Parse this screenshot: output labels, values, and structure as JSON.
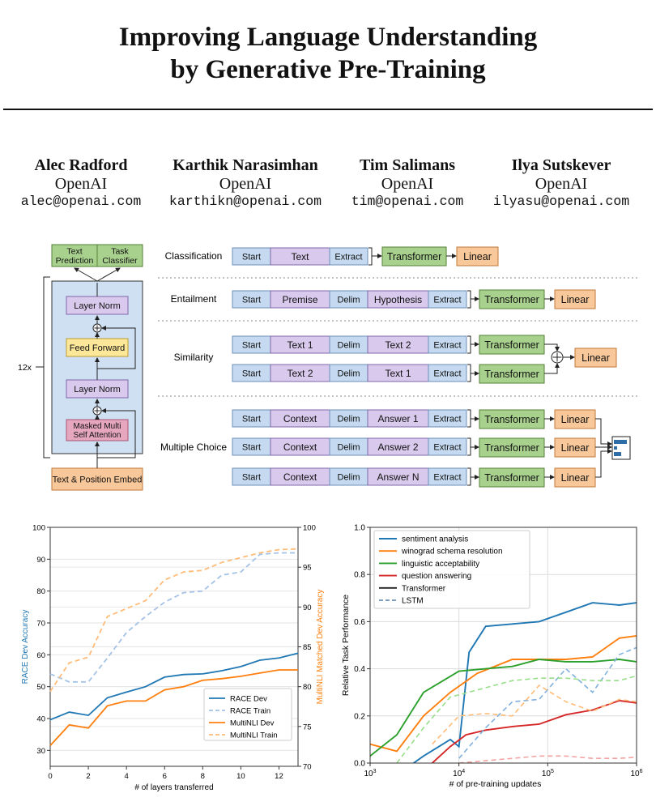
{
  "paper": {
    "title_line1": "Improving Language Understanding",
    "title_line2": "by Generative Pre-Training",
    "authors": [
      {
        "name": "Alec Radford",
        "affiliation": "OpenAI",
        "email": "alec@openai.com"
      },
      {
        "name": "Karthik Narasimhan",
        "affiliation": "OpenAI",
        "email": "karthikn@openai.com"
      },
      {
        "name": "Tim Salimans",
        "affiliation": "OpenAI",
        "email": "tim@openai.com"
      },
      {
        "name": "Ilya Sutskever",
        "affiliation": "OpenAI",
        "email": "ilyasu@openai.com"
      }
    ]
  },
  "figure": {
    "arch": {
      "text_prediction": [
        "Text",
        "Prediction"
      ],
      "task_classifier": [
        "Task",
        "Classifier"
      ],
      "layer_norm": "Layer Norm",
      "feed_forward": "Feed Forward",
      "masked_attention": [
        "Masked Multi",
        "Self Attention"
      ],
      "embed": "Text & Position Embed",
      "repeat": "12x"
    },
    "tasks": {
      "classification": "Classification",
      "entailment": "Entailment",
      "similarity": "Similarity",
      "multiple_choice": "Multiple Choice"
    },
    "tokens": {
      "start": "Start",
      "extract": "Extract",
      "delim": "Delim",
      "text": "Text",
      "premise": "Premise",
      "hypothesis": "Hypothesis",
      "text1": "Text 1",
      "text2": "Text 2",
      "context": "Context",
      "answer1": "Answer 1",
      "answer2": "Answer 2",
      "answerN": "Answer N",
      "transformer": "Transformer",
      "linear": "Linear"
    },
    "colors": {
      "green": "#a9d18e",
      "green_border": "#548235",
      "blue": "#c5daf0",
      "blue_border": "#6d8fb8",
      "purple": "#d9c9ec",
      "purple_border": "#7e67a8",
      "orange": "#f8c89a",
      "orange_border": "#c07a3a",
      "yellow": "#fde89a",
      "pink": "#e6a7be",
      "panel": "#cfe0f3"
    }
  },
  "chart_data": [
    {
      "type": "line",
      "title": "",
      "xlabel": "# of layers transferred",
      "ylabel": "RACE Dev Accuracy",
      "ylabel_right": "MultiNLI Matched Dev Accuracy",
      "xlim": [
        0,
        13
      ],
      "ylim": [
        25,
        100
      ],
      "ylim_right": [
        70,
        100
      ],
      "xticks": [
        0,
        2,
        4,
        6,
        8,
        10,
        12
      ],
      "yticks": [
        30,
        40,
        50,
        60,
        70,
        80,
        90,
        100
      ],
      "yticks_right": [
        70,
        75,
        80,
        85,
        90,
        95,
        100
      ],
      "legend_position": "lower-right",
      "series": [
        {
          "name": "RACE Dev",
          "axis": "left",
          "style": "solid",
          "color": "#1f77b4",
          "x": [
            0,
            1,
            2,
            3,
            4,
            5,
            6,
            7,
            8,
            9,
            10,
            11,
            12,
            13
          ],
          "y": [
            39.6,
            42.0,
            41.0,
            46.5,
            48.3,
            50.0,
            53.0,
            53.8,
            54.0,
            55.0,
            56.3,
            58.3,
            59.0,
            60.5
          ]
        },
        {
          "name": "RACE Train",
          "axis": "left",
          "style": "dashed",
          "color": "#a4c2e6",
          "x": [
            0,
            1,
            2,
            3,
            4,
            5,
            6,
            7,
            8,
            9,
            10,
            11,
            12,
            13
          ],
          "y": [
            54.0,
            51.5,
            51.5,
            59.0,
            67.0,
            72.0,
            76.5,
            79.5,
            80.0,
            85.0,
            86.0,
            91.5,
            92.0,
            92.0
          ]
        },
        {
          "name": "MultiNLI Dev",
          "axis": "right",
          "style": "solid",
          "color": "#ff7f0e",
          "x": [
            0,
            1,
            2,
            3,
            4,
            5,
            6,
            7,
            8,
            9,
            10,
            11,
            12,
            13
          ],
          "y": [
            72.6,
            75.2,
            74.8,
            77.6,
            78.2,
            78.2,
            79.6,
            80.0,
            80.8,
            81.0,
            81.3,
            81.7,
            82.1,
            82.1
          ]
        },
        {
          "name": "MultiNLI Train",
          "axis": "right",
          "style": "dashed",
          "color": "#ffbb78",
          "x": [
            0,
            1,
            2,
            3,
            4,
            5,
            6,
            7,
            8,
            9,
            10,
            11,
            12,
            13
          ],
          "y": [
            79.4,
            83.0,
            83.7,
            88.8,
            89.8,
            90.8,
            93.4,
            94.4,
            94.6,
            95.6,
            96.2,
            96.8,
            97.2,
            97.3
          ]
        }
      ]
    },
    {
      "type": "line",
      "title": "",
      "xlabel": "# of pre-training updates",
      "ylabel": "Relative Task Performance",
      "xscale": "log",
      "xlim": [
        1000,
        1000000
      ],
      "ylim": [
        0,
        1.0
      ],
      "xtick_labels": [
        {
          "value": 1000,
          "base": "10",
          "exp": "3"
        },
        {
          "value": 10000,
          "base": "10",
          "exp": "4"
        },
        {
          "value": 100000,
          "base": "10",
          "exp": "5"
        },
        {
          "value": 1000000,
          "base": "10",
          "exp": "6"
        }
      ],
      "yticks": [
        0.0,
        0.2,
        0.4,
        0.6,
        0.8,
        1.0
      ],
      "ytick_labels": [
        "0.0",
        "0.2",
        "0.4",
        "0.6",
        "0.8",
        "1.0"
      ],
      "legend_position": "upper-left",
      "legend_items": [
        {
          "name": "sentiment analysis",
          "color": "#1f77b4",
          "style": "solid"
        },
        {
          "name": "winograd schema resolution",
          "color": "#ff7f0e",
          "style": "solid"
        },
        {
          "name": "linguistic acceptability",
          "color": "#2ca02c",
          "style": "solid"
        },
        {
          "name": "question answering",
          "color": "#d62728",
          "style": "solid"
        },
        {
          "name": "Transformer",
          "color": "#222222",
          "style": "solid"
        },
        {
          "name": "LSTM",
          "color": "#7f9fbf",
          "style": "dashed"
        }
      ],
      "series": [
        {
          "name": "sentiment analysis",
          "model": "Transformer",
          "color": "#1f77b4",
          "style": "solid",
          "x": [
            1000,
            2000,
            4000,
            8000,
            10000,
            13000,
            20000,
            40000,
            80000,
            160000,
            320000,
            640000,
            1000000
          ],
          "y": [
            -0.05,
            -0.05,
            0.03,
            0.1,
            0.07,
            0.47,
            0.58,
            0.59,
            0.6,
            0.64,
            0.68,
            0.67,
            0.68
          ]
        },
        {
          "name": "winograd schema resolution",
          "model": "Transformer",
          "color": "#ff7f0e",
          "style": "solid",
          "x": [
            1000,
            2000,
            4000,
            8000,
            16000,
            40000,
            80000,
            160000,
            320000,
            640000,
            1000000
          ],
          "y": [
            0.08,
            0.05,
            0.2,
            0.3,
            0.38,
            0.44,
            0.44,
            0.44,
            0.45,
            0.53,
            0.54
          ]
        },
        {
          "name": "linguistic acceptability",
          "model": "Transformer",
          "color": "#2ca02c",
          "style": "solid",
          "x": [
            1000,
            2000,
            4000,
            10000,
            20000,
            40000,
            80000,
            160000,
            320000,
            640000,
            1000000
          ],
          "y": [
            0.03,
            0.12,
            0.3,
            0.39,
            0.4,
            0.41,
            0.44,
            0.43,
            0.43,
            0.44,
            0.43
          ]
        },
        {
          "name": "question answering",
          "model": "Transformer",
          "color": "#d62728",
          "style": "solid",
          "x": [
            5000,
            8000,
            12000,
            20000,
            40000,
            80000,
            160000,
            320000,
            640000,
            1000000
          ],
          "y": [
            0.0,
            0.07,
            0.12,
            0.14,
            0.155,
            0.165,
            0.205,
            0.225,
            0.265,
            0.255
          ]
        },
        {
          "name": "sentiment analysis",
          "model": "LSTM",
          "color": "#7fb0dd",
          "style": "dashed",
          "x": [
            10000,
            20000,
            40000,
            80000,
            160000,
            320000,
            640000,
            1000000
          ],
          "y": [
            0.02,
            0.15,
            0.26,
            0.27,
            0.4,
            0.3,
            0.46,
            0.49
          ]
        },
        {
          "name": "winograd schema resolution",
          "model": "LSTM",
          "color": "#ffbb78",
          "style": "dashed",
          "x": [
            5000,
            10000,
            20000,
            40000,
            80000,
            160000,
            320000,
            640000,
            1000000
          ],
          "y": [
            0.08,
            0.2,
            0.21,
            0.2,
            0.33,
            0.26,
            0.22,
            0.27,
            0.26
          ]
        },
        {
          "name": "linguistic acceptability",
          "model": "LSTM",
          "color": "#98df8a",
          "style": "dashed",
          "x": [
            2000,
            4000,
            8000,
            16000,
            40000,
            80000,
            160000,
            320000,
            640000,
            1000000
          ],
          "y": [
            0.0,
            0.15,
            0.28,
            0.31,
            0.35,
            0.36,
            0.36,
            0.35,
            0.35,
            0.37
          ]
        },
        {
          "name": "question answering",
          "model": "LSTM",
          "color": "#f4a3a3",
          "style": "dashed",
          "x": [
            10000,
            20000,
            40000,
            80000,
            160000,
            320000,
            640000,
            1000000
          ],
          "y": [
            0.0,
            0.01,
            0.02,
            0.03,
            0.03,
            0.02,
            0.02,
            0.025
          ]
        }
      ]
    }
  ]
}
